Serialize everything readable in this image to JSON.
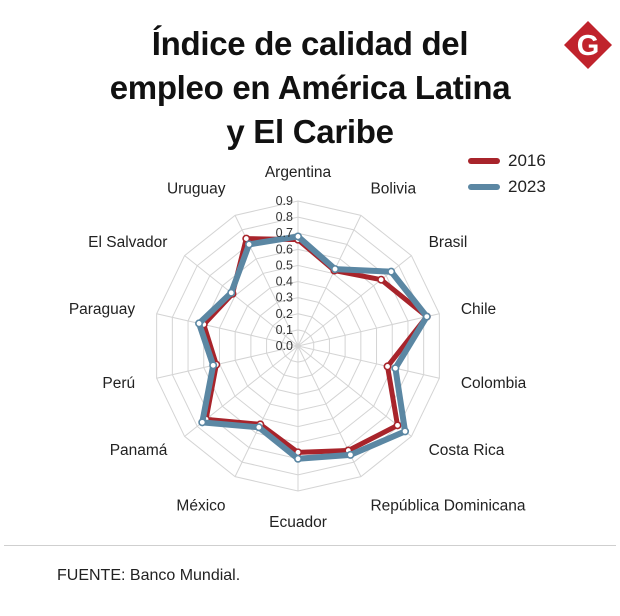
{
  "title": {
    "line1": "Índice de calidad del",
    "line2": "empleo en América Latina",
    "line3": "y El Caribe"
  },
  "logo": {
    "letter": "G",
    "color": "#c0232c",
    "icon": "g-logo-icon"
  },
  "source": "FUENTE: Banco Mundial.",
  "chart_data": {
    "type": "radar",
    "title": "Índice de calidad del empleo en América Latina y El Caribe",
    "categories": [
      "Argentina",
      "Bolivia",
      "Brasil",
      "Chile",
      "Colombia",
      "Costa Rica",
      "República Dominicana",
      "Ecuador",
      "México",
      "Panamá",
      "Perú",
      "Paraguay",
      "El Salvador",
      "Uruguay"
    ],
    "radial_ticks": [
      "0.0",
      "0.1",
      "0.2",
      "0.3",
      "0.4",
      "0.5",
      "0.6",
      "0.7",
      "0.8",
      "0.9"
    ],
    "range": [
      0,
      0.9
    ],
    "series": [
      {
        "name": "2016",
        "color": "#a8242b",
        "values": [
          0.66,
          0.52,
          0.66,
          0.82,
          0.57,
          0.79,
          0.72,
          0.66,
          0.54,
          0.73,
          0.52,
          0.6,
          0.52,
          0.74
        ]
      },
      {
        "name": "2023",
        "color": "#5b87a3",
        "values": [
          0.68,
          0.53,
          0.74,
          0.82,
          0.62,
          0.85,
          0.75,
          0.7,
          0.56,
          0.76,
          0.54,
          0.63,
          0.53,
          0.7
        ]
      }
    ],
    "grid": true,
    "legend_position": "top-right"
  }
}
